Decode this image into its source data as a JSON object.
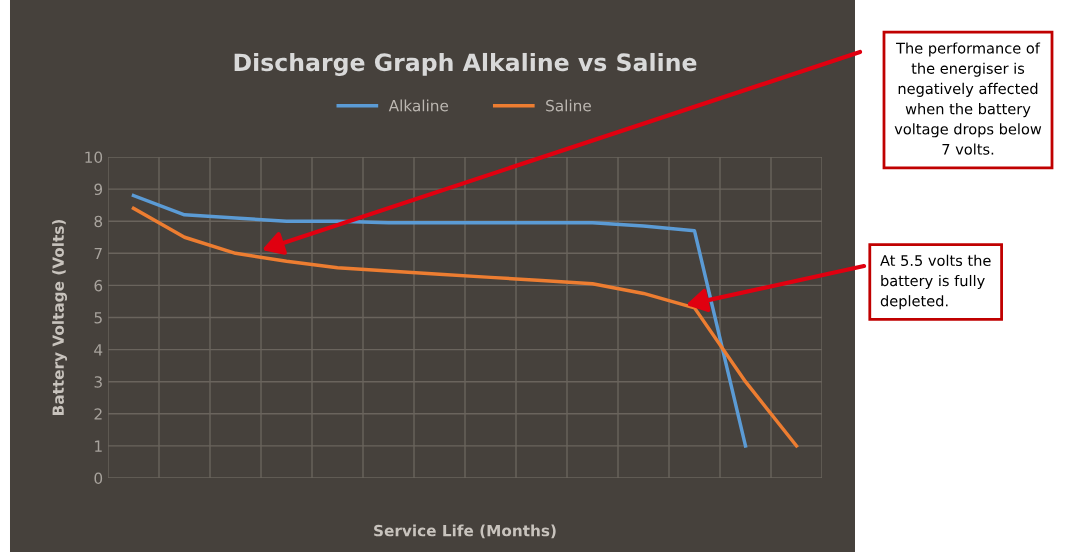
{
  "chart_data": {
    "type": "line",
    "title": "Discharge Graph Alkaline vs Saline",
    "xlabel": "Service Life (Months)",
    "ylabel": "Battery Voltage (Volts)",
    "categories": [
      null,
      null,
      null,
      null,
      null,
      null,
      null,
      null,
      null,
      null,
      null,
      null,
      null,
      null
    ],
    "series": [
      {
        "name": "Alkaline",
        "color": "#5b9bd5",
        "values": [
          8.8,
          8.2,
          8.1,
          8.0,
          8.0,
          7.95,
          7.95,
          7.95,
          7.95,
          7.95,
          7.85,
          7.7,
          1.0,
          null
        ]
      },
      {
        "name": "Saline",
        "color": "#ed7d31",
        "values": [
          8.4,
          7.5,
          7.0,
          6.75,
          6.55,
          6.45,
          6.35,
          6.25,
          6.15,
          6.05,
          5.75,
          5.3,
          3.0,
          1.0
        ]
      }
    ],
    "ylim": [
      0,
      10
    ],
    "yticks": [
      0,
      1,
      2,
      3,
      4,
      5,
      6,
      7,
      8,
      9,
      10
    ],
    "grid": true,
    "legend": "top",
    "marker": "none",
    "line_style": "solid",
    "annotations": [
      "The performance of\nthe energiser is\nnegatively affected\nwhen the battery\nvoltage drops below\n7 volts.",
      "At 5.5 volts the\nbattery is fully\ndepleted."
    ]
  }
}
